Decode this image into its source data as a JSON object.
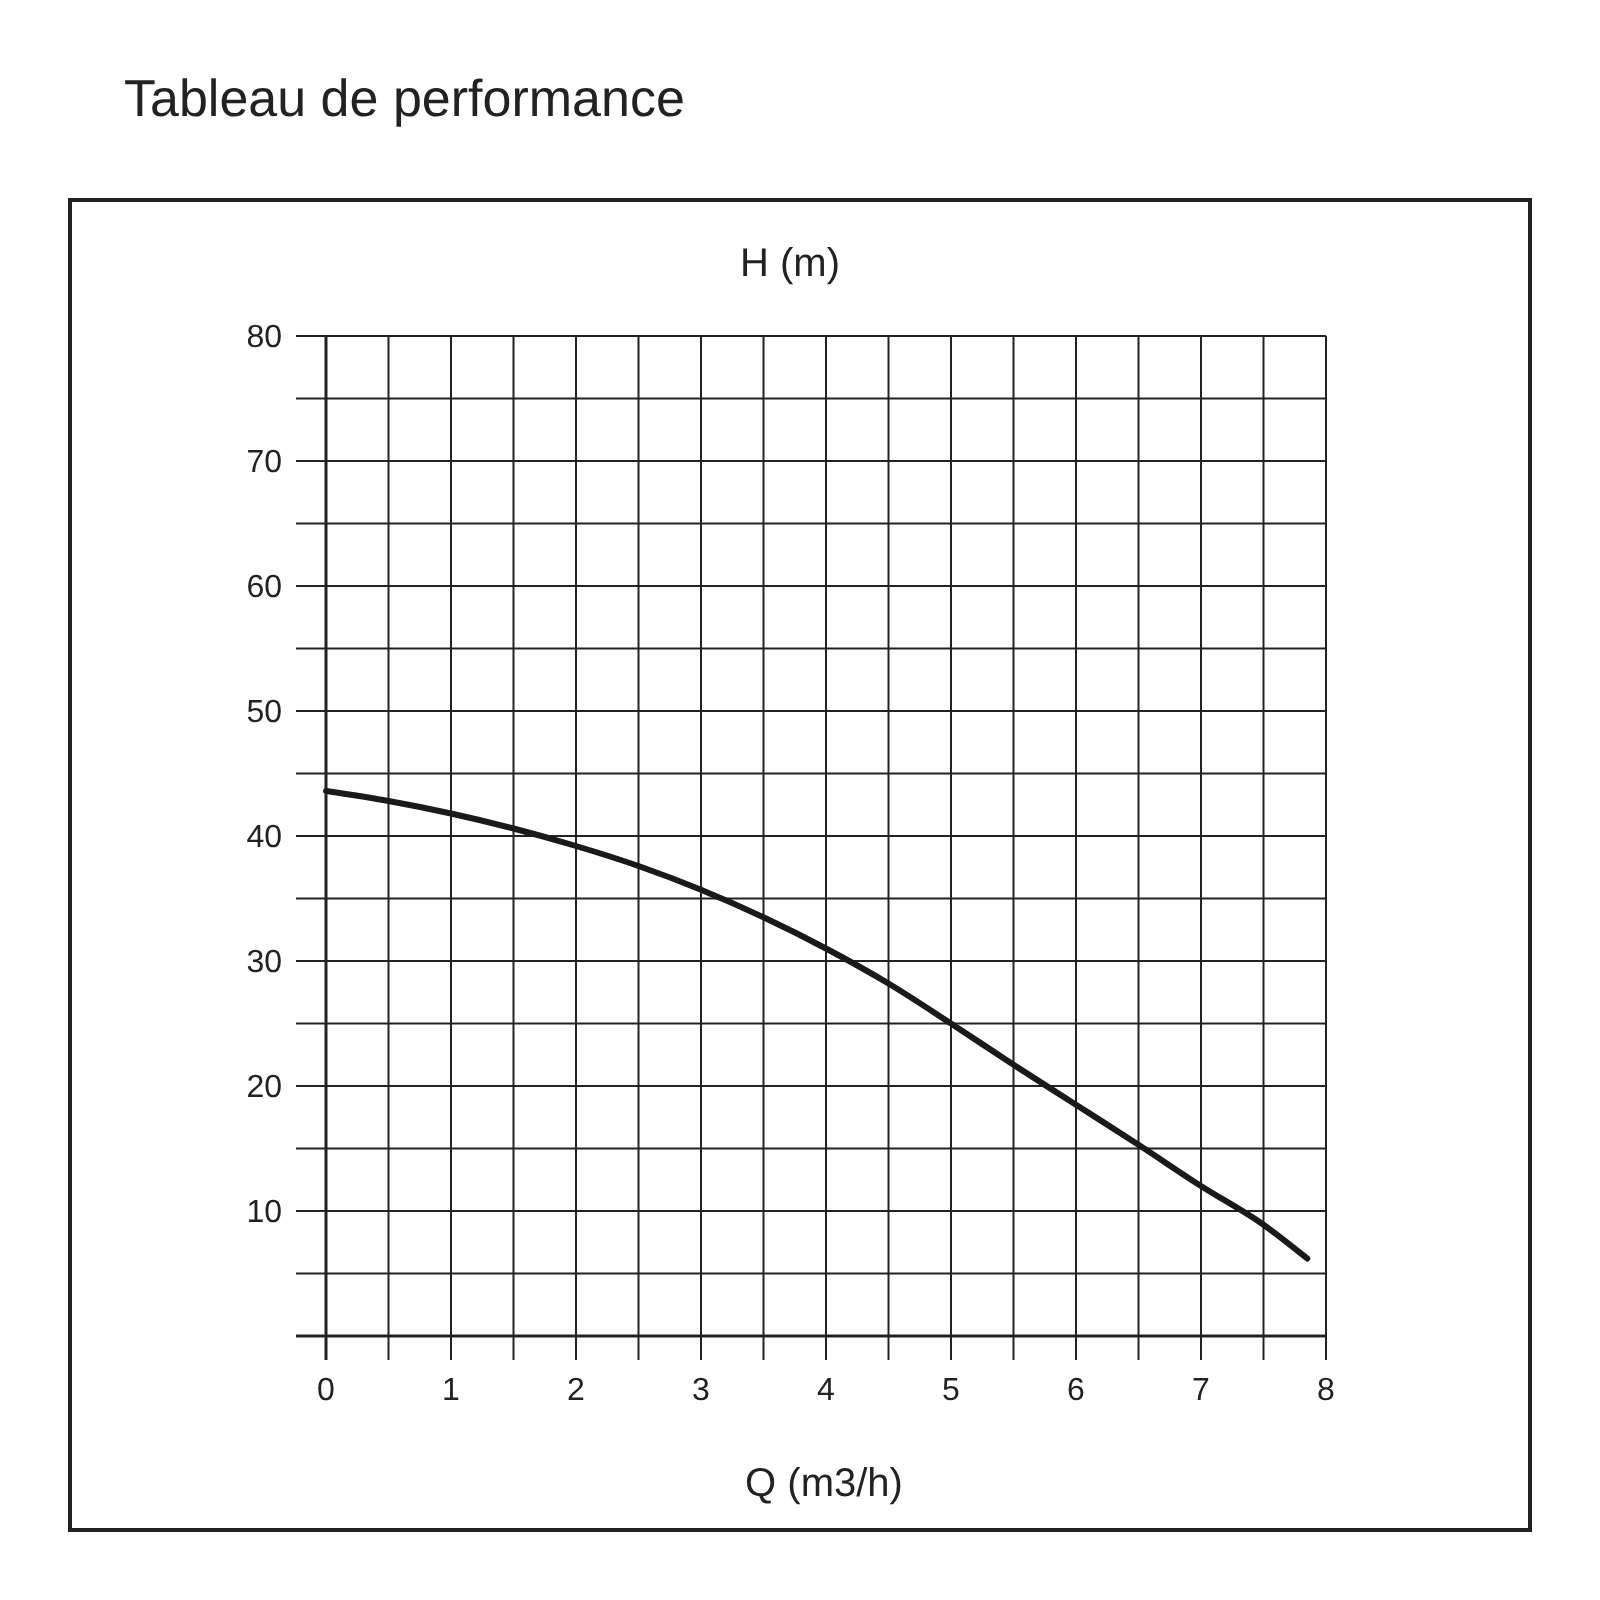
{
  "chart_data": {
    "type": "line",
    "title": "Tableau de performance",
    "xlabel": "Q (m3/h)",
    "ylabel": "H (m)",
    "x": [
      0,
      0.5,
      1,
      1.5,
      2,
      2.5,
      3,
      3.5,
      4,
      4.5,
      5,
      5.5,
      6,
      6.5,
      7,
      7.5,
      7.85
    ],
    "series": [
      {
        "color": "#1a1a1a",
        "values": [
          43.6,
          42.8,
          41.8,
          40.6,
          39.2,
          37.6,
          35.7,
          33.5,
          31,
          28.2,
          25,
          21.7,
          18.5,
          15.3,
          12,
          8.9,
          6.2
        ]
      }
    ],
    "xlim": [
      0,
      8
    ],
    "ylim": [
      0,
      80
    ],
    "xticks": [
      0,
      {
        "value": 0.5,
        "label": null
      },
      1,
      {
        "value": 1.5,
        "label": null
      },
      2,
      {
        "value": 2.5,
        "label": null
      },
      3,
      {
        "value": 3.5,
        "label": null
      },
      4,
      {
        "value": 4.5,
        "label": null
      },
      5,
      {
        "value": 5.5,
        "label": null
      },
      6,
      {
        "value": 6.5,
        "label": null
      },
      7,
      {
        "value": 7.5,
        "label": null
      },
      8
    ],
    "yticks": [
      {
        "value": 0,
        "label": null
      },
      {
        "value": 5,
        "label": null
      },
      10,
      {
        "value": 15,
        "label": null
      },
      20,
      {
        "value": 25,
        "label": null
      },
      30,
      {
        "value": 35,
        "label": null
      },
      40,
      {
        "value": 45,
        "label": null
      },
      50,
      {
        "value": 55,
        "label": null
      },
      60,
      {
        "value": 65,
        "label": null
      },
      70,
      {
        "value": 75,
        "label": null
      },
      80
    ],
    "grid": true,
    "marker": "none",
    "line_style": "solid"
  }
}
